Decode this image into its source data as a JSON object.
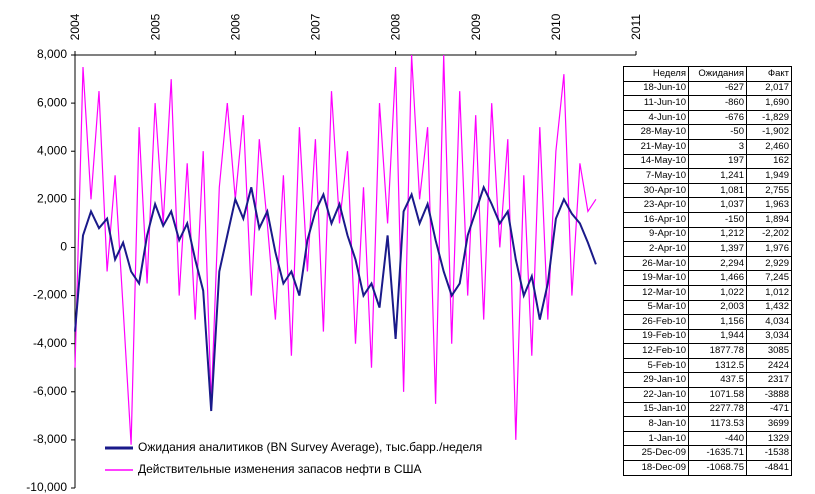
{
  "chart_data": {
    "type": "line",
    "x": [
      2004.0,
      2004.1,
      2004.2,
      2004.3,
      2004.4,
      2004.5,
      2004.6,
      2004.7,
      2004.8,
      2004.9,
      2005.0,
      2005.1,
      2005.2,
      2005.3,
      2005.4,
      2005.5,
      2005.6,
      2005.7,
      2005.8,
      2005.9,
      2006.0,
      2006.1,
      2006.2,
      2006.3,
      2006.4,
      2006.5,
      2006.6,
      2006.7,
      2006.8,
      2006.9,
      2007.0,
      2007.1,
      2007.2,
      2007.3,
      2007.4,
      2007.5,
      2007.6,
      2007.7,
      2007.8,
      2007.9,
      2008.0,
      2008.1,
      2008.2,
      2008.3,
      2008.4,
      2008.5,
      2008.6,
      2008.7,
      2008.8,
      2008.9,
      2009.0,
      2009.1,
      2009.2,
      2009.3,
      2009.4,
      2009.5,
      2009.6,
      2009.7,
      2009.8,
      2009.9,
      2010.0,
      2010.1,
      2010.2,
      2010.3,
      2010.4,
      2010.5
    ],
    "series": [
      {
        "name": "Ожидания аналитиков (BN Survey Average), тыс.барр./неделя",
        "color": "#1a1a8a",
        "values": [
          -3500,
          500,
          1500,
          800,
          1200,
          -500,
          200,
          -1000,
          -1500,
          500,
          1800,
          900,
          1500,
          300,
          1000,
          -500,
          -1800,
          -6800,
          -1000,
          500,
          2000,
          1200,
          2500,
          800,
          1500,
          -200,
          -1500,
          -1000,
          -2000,
          300,
          1500,
          2200,
          1000,
          1800,
          500,
          -500,
          -2000,
          -1500,
          -2500,
          500,
          -3800,
          1500,
          2200,
          1000,
          1800,
          300,
          -1000,
          -2000,
          -1500,
          500,
          1500,
          2500,
          1800,
          1000,
          1500,
          -500,
          -2000,
          -1200,
          -3000,
          -1500,
          1200,
          2000,
          1400,
          1000,
          200,
          -700
        ]
      },
      {
        "name": "Действительные изменения запасов нефти в США",
        "color": "#ff00ff",
        "values": [
          -5000,
          7500,
          2000,
          6500,
          -1000,
          3000,
          -2500,
          -8200,
          5000,
          -1500,
          6000,
          1000,
          7000,
          -2000,
          3500,
          -3000,
          4000,
          -6500,
          2500,
          6000,
          2000,
          5500,
          -2000,
          4500,
          1000,
          -3000,
          3000,
          -4500,
          5000,
          -1000,
          4500,
          -3500,
          6500,
          1000,
          4000,
          -4000,
          2500,
          -5000,
          6000,
          1000,
          7500,
          -6000,
          8000,
          2000,
          5000,
          -6500,
          8000,
          -4000,
          6500,
          -2000,
          5500,
          -3000,
          6000,
          0,
          4500,
          -8000,
          3000,
          -4500,
          5000,
          -3000,
          4000,
          7200,
          -2000,
          3500,
          1500,
          2000
        ]
      }
    ],
    "xlim": [
      2004,
      2011
    ],
    "xticks": [
      2004,
      2005,
      2006,
      2007,
      2008,
      2009,
      2010,
      2011
    ],
    "ylim": [
      -10000,
      8000
    ],
    "yticks": [
      {
        "value": -10000,
        "label": "-10,000"
      },
      {
        "value": -8000,
        "label": "-8,000"
      },
      {
        "value": -6000,
        "label": "-6,000"
      },
      {
        "value": -4000,
        "label": "-4,000"
      },
      {
        "value": -2000,
        "label": "-2,000"
      },
      0,
      {
        "value": 2000,
        "label": "2,000"
      },
      {
        "value": 4000,
        "label": "4,000"
      },
      {
        "value": 6000,
        "label": "6,000"
      },
      {
        "value": 8000,
        "label": "8,000"
      }
    ],
    "grid": false,
    "legend": "lower left"
  },
  "table": {
    "columns": [
      "Неделя",
      "Ожидания",
      "Факт"
    ],
    "rows": [
      [
        "18-Jun-10",
        "-627",
        "2,017"
      ],
      [
        "11-Jun-10",
        "-860",
        "1,690"
      ],
      [
        "4-Jun-10",
        "-676",
        "-1,829"
      ],
      [
        "28-May-10",
        "-50",
        "-1,902"
      ],
      [
        "21-May-10",
        "3",
        "2,460"
      ],
      [
        "14-May-10",
        "197",
        "162"
      ],
      [
        "7-May-10",
        "1,241",
        "1,949"
      ],
      [
        "30-Apr-10",
        "1,081",
        "2,755"
      ],
      [
        "23-Apr-10",
        "1,037",
        "1,963"
      ],
      [
        "16-Apr-10",
        "-150",
        "1,894"
      ],
      [
        "9-Apr-10",
        "1,212",
        "-2,202"
      ],
      [
        "2-Apr-10",
        "1,397",
        "1,976"
      ],
      [
        "26-Mar-10",
        "2,294",
        "2,929"
      ],
      [
        "19-Mar-10",
        "1,466",
        "7,245"
      ],
      [
        "12-Mar-10",
        "1,022",
        "1,012"
      ],
      [
        "5-Mar-10",
        "2,003",
        "1,432"
      ],
      [
        "26-Feb-10",
        "1,156",
        "4,034"
      ],
      [
        "19-Feb-10",
        "1,944",
        "3,034"
      ],
      [
        "12-Feb-10",
        "1877.78",
        "3085"
      ],
      [
        "5-Feb-10",
        "1312.5",
        "2424"
      ],
      [
        "29-Jan-10",
        "437.5",
        "2317"
      ],
      [
        "22-Jan-10",
        "1071.58",
        "-3888"
      ],
      [
        "15-Jan-10",
        "2277.78",
        "-471"
      ],
      [
        "8-Jan-10",
        "1173.53",
        "3699"
      ],
      [
        "1-Jan-10",
        "-440",
        "1329"
      ],
      [
        "25-Dec-09",
        "-1635.71",
        "-1538"
      ],
      [
        "18-Dec-09",
        "-1068.75",
        "-4841"
      ]
    ]
  }
}
